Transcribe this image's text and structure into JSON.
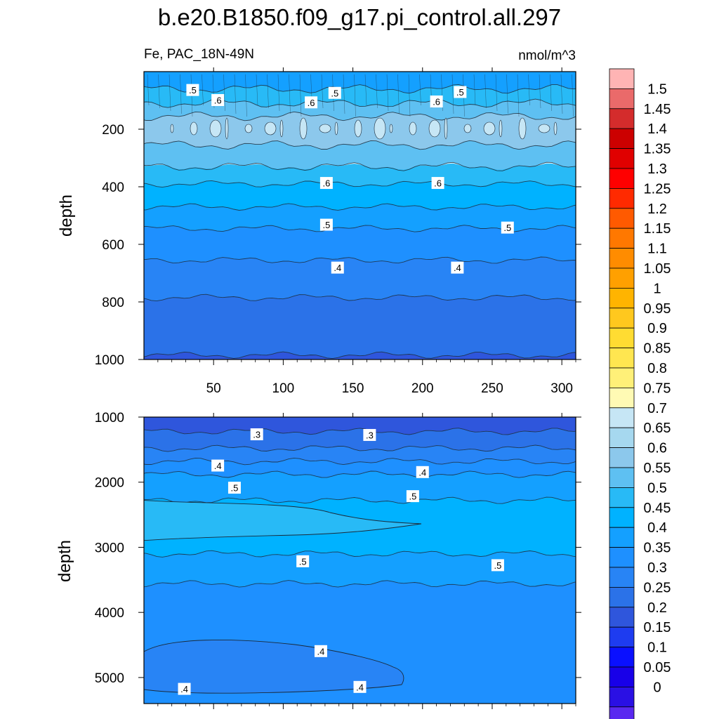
{
  "title": "b.e20.B1850.f09_g17.pi_control.all.297",
  "chart_data": [
    {
      "type": "heatmap",
      "name": "upper-panel",
      "left_label": "Fe, PAC_18N-49N",
      "right_label": "nmol/m^3",
      "xlabel": "",
      "ylabel": "depth",
      "xlim": [
        0,
        310
      ],
      "ylim": [
        0,
        1000
      ],
      "x_ticks": [
        50,
        100,
        150,
        200,
        250,
        300
      ],
      "x_tick_labels": [
        "50",
        "100",
        "150",
        "200",
        "250",
        "300"
      ],
      "y_ticks": [
        200,
        400,
        600,
        800,
        1000
      ],
      "y_tick_labels": [
        "200",
        "400",
        "600",
        "800",
        "1000"
      ],
      "bands": [
        {
          "top": 0,
          "bottom": 60,
          "value": 0.45
        },
        {
          "top": 60,
          "bottom": 110,
          "value": 0.55
        },
        {
          "top": 110,
          "bottom": 155,
          "value": 0.6
        },
        {
          "top": 155,
          "bottom": 255,
          "value": 0.65
        },
        {
          "top": 255,
          "bottom": 330,
          "value": 0.6
        },
        {
          "top": 330,
          "bottom": 390,
          "value": 0.55
        },
        {
          "top": 390,
          "bottom": 470,
          "value": 0.5
        },
        {
          "top": 470,
          "bottom": 545,
          "value": 0.45
        },
        {
          "top": 545,
          "bottom": 655,
          "value": 0.4
        },
        {
          "top": 655,
          "bottom": 785,
          "value": 0.35
        },
        {
          "top": 785,
          "bottom": 985,
          "value": 0.3
        },
        {
          "top": 985,
          "bottom": 1000,
          "value": 0.25
        }
      ],
      "contour_labels": [
        {
          "x": 35,
          "y": 65,
          "text": ".5"
        },
        {
          "x": 53,
          "y": 100,
          "text": ".6"
        },
        {
          "x": 120,
          "y": 108,
          "text": ".6"
        },
        {
          "x": 137,
          "y": 75,
          "text": ".5"
        },
        {
          "x": 227,
          "y": 72,
          "text": ".5"
        },
        {
          "x": 210,
          "y": 105,
          "text": ".6"
        },
        {
          "x": 131,
          "y": 388,
          "text": ".6"
        },
        {
          "x": 211,
          "y": 388,
          "text": ".6"
        },
        {
          "x": 131,
          "y": 533,
          "text": ".5"
        },
        {
          "x": 261,
          "y": 543,
          "text": ".5"
        },
        {
          "x": 139,
          "y": 682,
          "text": ".4"
        },
        {
          "x": 225,
          "y": 682,
          "text": ".4"
        }
      ]
    },
    {
      "type": "heatmap",
      "name": "lower-panel",
      "xlabel": "",
      "ylabel": "depth",
      "xlim": [
        0,
        310
      ],
      "ylim": [
        1000,
        5400
      ],
      "x_ticks": [
        50,
        100,
        150,
        200,
        250,
        300
      ],
      "y_ticks": [
        1000,
        2000,
        3000,
        4000,
        5000
      ],
      "y_tick_labels": [
        "1000",
        "2000",
        "3000",
        "4000",
        "5000"
      ],
      "bands": [
        {
          "top": 1000,
          "bottom": 1220,
          "value": 0.25
        },
        {
          "top": 1220,
          "bottom": 1480,
          "value": 0.3
        },
        {
          "top": 1480,
          "bottom": 1680,
          "value": 0.35
        },
        {
          "top": 1680,
          "bottom": 1880,
          "value": 0.4
        },
        {
          "top": 1880,
          "bottom": 2280,
          "value": 0.45
        },
        {
          "top": 2280,
          "bottom": 3100,
          "value": 0.5
        },
        {
          "top": 3100,
          "bottom": 3560,
          "value": 0.45
        },
        {
          "top": 3560,
          "bottom": 5400,
          "value": 0.4
        }
      ],
      "contour_labels": [
        {
          "x": 81,
          "y": 1270,
          "text": ".3"
        },
        {
          "x": 162,
          "y": 1280,
          "text": ".3"
        },
        {
          "x": 53,
          "y": 1750,
          "text": ".4"
        },
        {
          "x": 200,
          "y": 1850,
          "text": ".4"
        },
        {
          "x": 65,
          "y": 2090,
          "text": ".5"
        },
        {
          "x": 193,
          "y": 2220,
          "text": ".5"
        },
        {
          "x": 114,
          "y": 3220,
          "text": ".5"
        },
        {
          "x": 254,
          "y": 3280,
          "text": ".5"
        },
        {
          "x": 127,
          "y": 4600,
          "text": ".4"
        },
        {
          "x": 29,
          "y": 5180,
          "text": ".4"
        },
        {
          "x": 155,
          "y": 5150,
          "text": ".4"
        }
      ]
    }
  ],
  "colorbar": {
    "labels": [
      "1.5",
      "1.45",
      "1.4",
      "1.35",
      "1.3",
      "1.25",
      "1.2",
      "1.15",
      "1.1",
      "1.05",
      "1",
      "0.95",
      "0.9",
      "0.85",
      "0.8",
      "0.75",
      "0.7",
      "0.65",
      "0.6",
      "0.55",
      "0.5",
      "0.45",
      "0.4",
      "0.35",
      "0.3",
      "0.25",
      "0.2",
      "0.15",
      "0.1",
      "0.05",
      "0"
    ],
    "colors": [
      "#ffb4b4",
      "#ea6a6a",
      "#d42c2c",
      "#cc0000",
      "#e00000",
      "#ff0000",
      "#ff2a00",
      "#ff5a00",
      "#ff7800",
      "#ff8c00",
      "#ffa000",
      "#ffb400",
      "#ffc81e",
      "#ffdc32",
      "#ffe650",
      "#fff078",
      "#fffab4",
      "#c6e6f5",
      "#a6d8ef",
      "#8cc8ec",
      "#5ec0f2",
      "#28baf6",
      "#00b2ff",
      "#14a0ff",
      "#1e90ff",
      "#2884f5",
      "#2b72e8",
      "#2f56dc",
      "#1e3cf0",
      "#0a10ff",
      "#1800e8",
      "#2a10e4",
      "#5a28f0",
      "#8a3cf0"
    ]
  }
}
